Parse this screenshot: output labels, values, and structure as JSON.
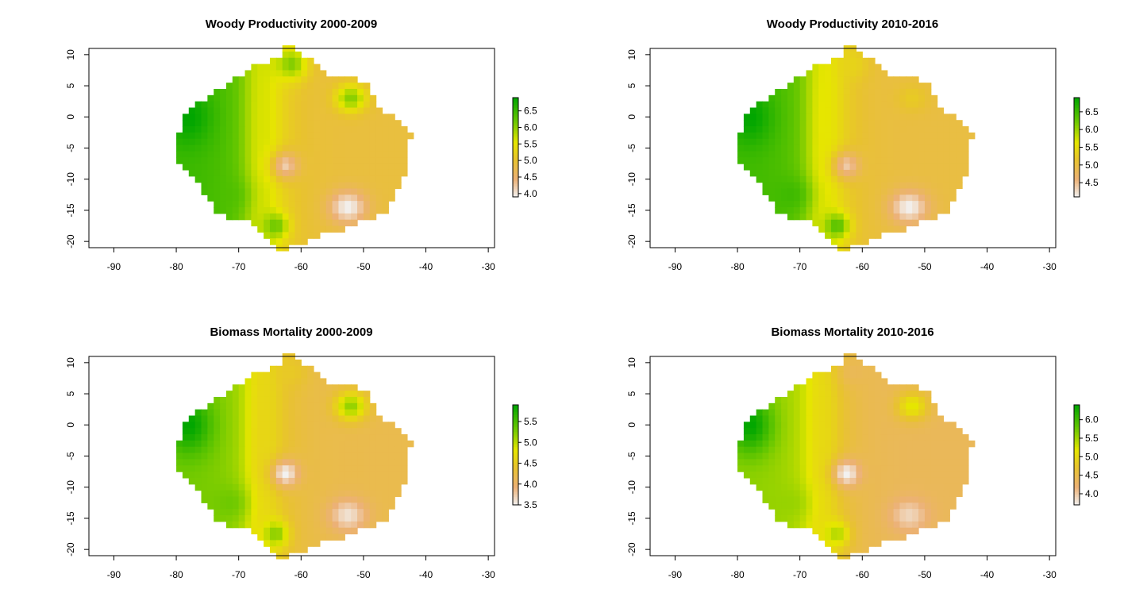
{
  "figure": {
    "type": "raster-map-panels",
    "layout": "2x2",
    "grid": false,
    "legend_position": "right of each panel"
  },
  "colors": {
    "ramp_high": "#00A600",
    "ramp_mid_high": "#63C600",
    "ramp_mid": "#E6E600",
    "ramp_mid_low": "#E8C32E",
    "ramp_low_mid": "#ECB176",
    "ramp_low": "#F2F2F2",
    "axis": "#000000"
  },
  "chart_data": [
    {
      "type": "heatmap",
      "title": "Woody Productivity 2000-2009",
      "xlabel": "",
      "ylabel": "",
      "xlim": [
        -94,
        -29
      ],
      "ylim": [
        -21,
        11
      ],
      "x_ticks": [
        "-90",
        "-80",
        "-70",
        "-60",
        "-50",
        "-40",
        "-30"
      ],
      "y_ticks": [
        "-20",
        "-15",
        "-10",
        "-5",
        "0",
        "5",
        "10"
      ],
      "color_scale": {
        "min": 3.9,
        "max": 6.9,
        "ticks": [
          "4.0",
          "4.5",
          "5.0",
          "5.5",
          "6.0",
          "6.5"
        ]
      },
      "features": {
        "west_peak": 6.9,
        "west_south_peak": 6.5,
        "north_patch": 6.2,
        "northeast_patch": 6.2,
        "southwest_patch": 6.4,
        "corridor": 5.6,
        "east_plain": 4.9,
        "hotspot_center": 4.2,
        "hotspot_south": 3.9
      }
    },
    {
      "type": "heatmap",
      "title": "Woody Productivity 2010-2016",
      "xlabel": "",
      "ylabel": "",
      "xlim": [
        -94,
        -29
      ],
      "ylim": [
        -21,
        11
      ],
      "x_ticks": [
        "-90",
        "-80",
        "-70",
        "-60",
        "-50",
        "-40",
        "-30"
      ],
      "y_ticks": [
        "-20",
        "-15",
        "-10",
        "-5",
        "0",
        "5",
        "10"
      ],
      "color_scale": {
        "min": 4.1,
        "max": 6.9,
        "ticks": [
          "4.5",
          "5.0",
          "5.5",
          "6.0",
          "6.5"
        ]
      },
      "features": {
        "west_peak": 6.9,
        "west_south_peak": 6.5,
        "north_patch": 5.4,
        "northeast_patch": 5.3,
        "southwest_patch": 6.6,
        "corridor": 5.6,
        "east_plain": 5.0,
        "hotspot_center": 4.4,
        "hotspot_south": 4.1
      }
    },
    {
      "type": "heatmap",
      "title": "Biomass Mortality 2000-2009",
      "xlabel": "",
      "ylabel": "",
      "xlim": [
        -94,
        -29
      ],
      "ylim": [
        -21,
        11
      ],
      "x_ticks": [
        "-90",
        "-80",
        "-70",
        "-60",
        "-50",
        "-40",
        "-30"
      ],
      "y_ticks": [
        "-20",
        "-15",
        "-10",
        "-5",
        "0",
        "5",
        "10"
      ],
      "color_scale": {
        "min": 3.5,
        "max": 5.9,
        "ticks": [
          "3.5",
          "4.0",
          "4.5",
          "5.0",
          "5.5"
        ]
      },
      "features": {
        "west_peak": 5.9,
        "west_south_peak": 5.3,
        "north_patch": 4.5,
        "northeast_patch": 5.3,
        "southwest_patch": 5.4,
        "corridor": 4.6,
        "east_plain": 4.2,
        "hotspot_center": 3.5,
        "hotspot_south": 3.6
      }
    },
    {
      "type": "heatmap",
      "title": "Biomass Mortality 2010-2016",
      "xlabel": "",
      "ylabel": "",
      "xlim": [
        -94,
        -29
      ],
      "ylim": [
        -21,
        11
      ],
      "x_ticks": [
        "-90",
        "-80",
        "-70",
        "-60",
        "-50",
        "-40",
        "-30"
      ],
      "y_ticks": [
        "-20",
        "-15",
        "-10",
        "-5",
        "0",
        "5",
        "10"
      ],
      "color_scale": {
        "min": 3.7,
        "max": 6.4,
        "ticks": [
          "4.0",
          "4.5",
          "5.0",
          "5.5",
          "6.0"
        ]
      },
      "features": {
        "west_peak": 6.4,
        "west_south_peak": 5.6,
        "north_patch": 4.4,
        "northeast_patch": 5.3,
        "southwest_patch": 5.6,
        "corridor": 5.0,
        "east_plain": 4.4,
        "hotspot_center": 3.7,
        "hotspot_south": 3.9
      }
    }
  ]
}
